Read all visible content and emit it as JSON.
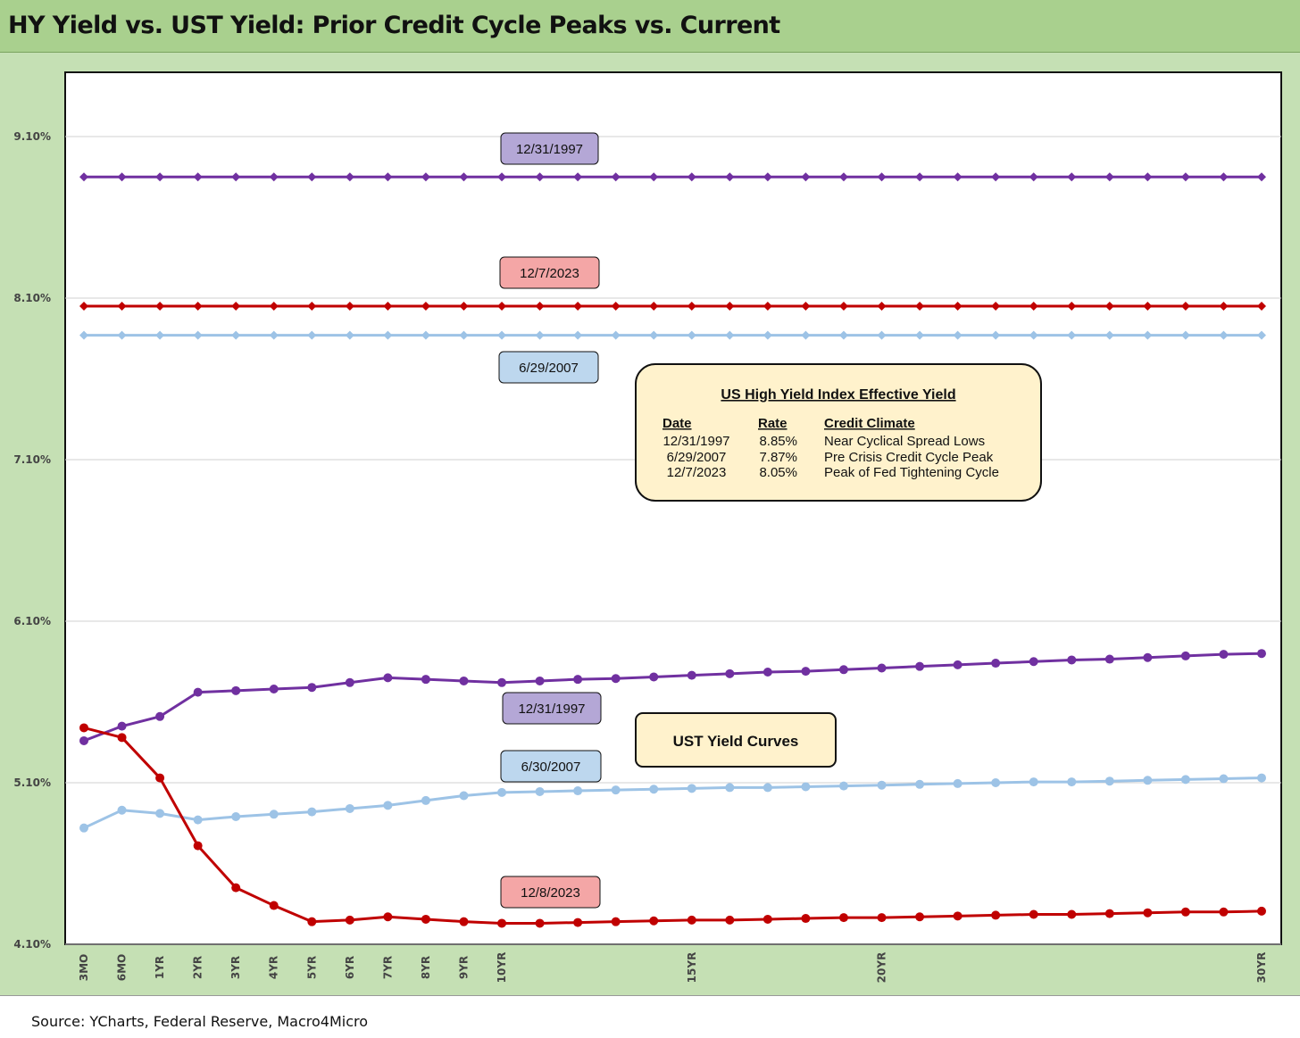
{
  "title": "HY Yield vs. UST Yield: Prior Credit Cycle Peaks vs. Current",
  "source": "Source: YCharts, Federal Reserve, Macro4Micro",
  "colors": {
    "purple": "#7030a0",
    "red": "#c00000",
    "lightblue": "#9dc3e6",
    "label_purple_fill": "#b4a7d6",
    "label_red_fill": "#f4a6a6",
    "label_blue_fill": "#bdd7ee",
    "box_fill": "#fff2cc",
    "green_bg": "#c5e0b4",
    "title_green": "#a9d08e",
    "grid": "#d0d0d0"
  },
  "chart_data": {
    "type": "line",
    "title": "HY Yield vs. UST Yield: Prior Credit Cycle Peaks vs. Current",
    "ylim": [
      4.1,
      9.5
    ],
    "yticks": [
      "4.10%",
      "5.10%",
      "6.10%",
      "7.10%",
      "8.10%",
      "9.10%"
    ],
    "ytick_values": [
      4.1,
      5.1,
      6.1,
      7.1,
      8.1,
      9.1
    ],
    "x": [
      0.25,
      0.5,
      1,
      2,
      3,
      4,
      5,
      6,
      7,
      8,
      9,
      10,
      11,
      12,
      13,
      14,
      15,
      16,
      17,
      18,
      19,
      20,
      21,
      22,
      23,
      24,
      25,
      26,
      27,
      28,
      29,
      30
    ],
    "xtick_labels": [
      {
        "label": "3MO",
        "index": 0
      },
      {
        "label": "6MO",
        "index": 1
      },
      {
        "label": "1YR",
        "index": 2
      },
      {
        "label": "2YR",
        "index": 3
      },
      {
        "label": "3YR",
        "index": 4
      },
      {
        "label": "4YR",
        "index": 5
      },
      {
        "label": "5YR",
        "index": 6
      },
      {
        "label": "6YR",
        "index": 7
      },
      {
        "label": "7YR",
        "index": 8
      },
      {
        "label": "8YR",
        "index": 9
      },
      {
        "label": "9YR",
        "index": 10
      },
      {
        "label": "10YR",
        "index": 11
      },
      {
        "label": "15YR",
        "index": 16
      },
      {
        "label": "20YR",
        "index": 21
      },
      {
        "label": "30YR",
        "index": 31
      }
    ],
    "series": [
      {
        "name": "HY 12/31/1997",
        "color": "purple",
        "marker": "diamond",
        "point_count": 32,
        "constant": 8.85
      },
      {
        "name": "HY 12/7/2023",
        "color": "red",
        "marker": "diamond",
        "point_count": 32,
        "constant": 8.05
      },
      {
        "name": "HY 6/29/2007",
        "color": "lightblue",
        "marker": "diamond",
        "point_count": 32,
        "constant": 7.87
      },
      {
        "name": "UST 12/31/1997",
        "color": "purple",
        "marker": "circle",
        "values": [
          5.36,
          5.45,
          5.51,
          5.66,
          5.67,
          5.68,
          5.69,
          5.72,
          5.75,
          5.74,
          5.73,
          5.72,
          5.73,
          5.74,
          5.745,
          5.755,
          5.765,
          5.775,
          5.785,
          5.79,
          5.8,
          5.81,
          5.82,
          5.83,
          5.84,
          5.85,
          5.86,
          5.865,
          5.875,
          5.885,
          5.895,
          5.9
        ]
      },
      {
        "name": "UST 6/30/2007",
        "color": "lightblue",
        "marker": "circle",
        "values": [
          4.82,
          4.93,
          4.91,
          4.87,
          4.89,
          4.905,
          4.92,
          4.94,
          4.96,
          4.99,
          5.02,
          5.04,
          5.045,
          5.05,
          5.055,
          5.06,
          5.065,
          5.07,
          5.07,
          5.075,
          5.08,
          5.085,
          5.09,
          5.095,
          5.1,
          5.105,
          5.105,
          5.11,
          5.115,
          5.12,
          5.125,
          5.13
        ]
      },
      {
        "name": "UST 12/8/2023",
        "color": "red",
        "marker": "circle",
        "values": [
          5.44,
          5.38,
          5.13,
          4.71,
          4.45,
          4.34,
          4.24,
          4.25,
          4.27,
          4.255,
          4.24,
          4.23,
          4.23,
          4.235,
          4.24,
          4.245,
          4.25,
          4.25,
          4.255,
          4.26,
          4.265,
          4.265,
          4.27,
          4.275,
          4.28,
          4.285,
          4.285,
          4.29,
          4.295,
          4.3,
          4.3,
          4.305
        ]
      }
    ]
  },
  "labels": {
    "hy_1997": "12/31/1997",
    "hy_2023": "12/7/2023",
    "hy_2007": "6/29/2007",
    "ust_1997": "12/31/1997",
    "ust_2007": "6/30/2007",
    "ust_2023": "12/8/2023",
    "ust_box": "UST Yield Curves"
  },
  "hy_table": {
    "title": "US High Yield Index Effective Yield",
    "headers": [
      "Date",
      "Rate",
      "Credit Climate"
    ],
    "rows": [
      [
        "12/31/1997",
        "8.85%",
        "Near Cyclical Spread Lows"
      ],
      [
        "6/29/2007",
        "7.87%",
        "Pre Crisis Credit Cycle Peak"
      ],
      [
        "12/7/2023",
        "8.05%",
        "Peak of Fed Tightening Cycle"
      ]
    ]
  }
}
